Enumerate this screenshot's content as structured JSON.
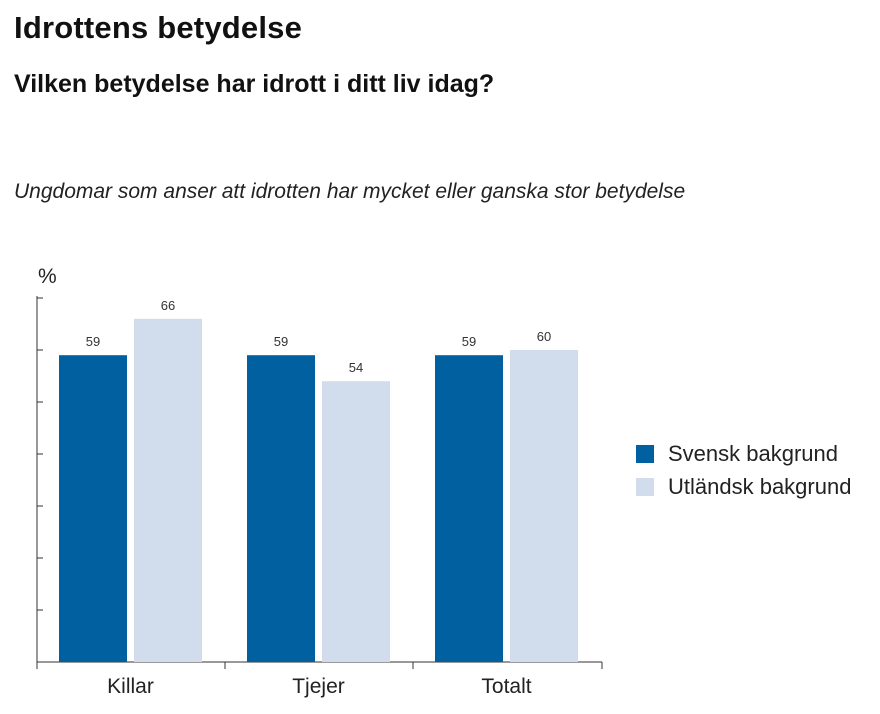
{
  "header": {
    "title": "Idrottens betydelse",
    "subtitle": "Vilken betydelse har idrott i ditt liv idag?",
    "caption": "Ungdomar som anser att idrotten har mycket eller ganska stor betydelse"
  },
  "chart_data": {
    "type": "bar",
    "ylabel": "%",
    "ylim": [
      0,
      100
    ],
    "categories": [
      "Killar",
      "Tjejer",
      "Totalt"
    ],
    "series": [
      {
        "name": "Svensk bakgrund",
        "values": [
          59,
          59,
          59
        ],
        "color": "#0060a0"
      },
      {
        "name": "Utländsk bakgrund",
        "values": [
          66,
          54,
          60
        ],
        "color": "#d1ddec"
      }
    ],
    "legend_position": "right",
    "grid": false
  }
}
